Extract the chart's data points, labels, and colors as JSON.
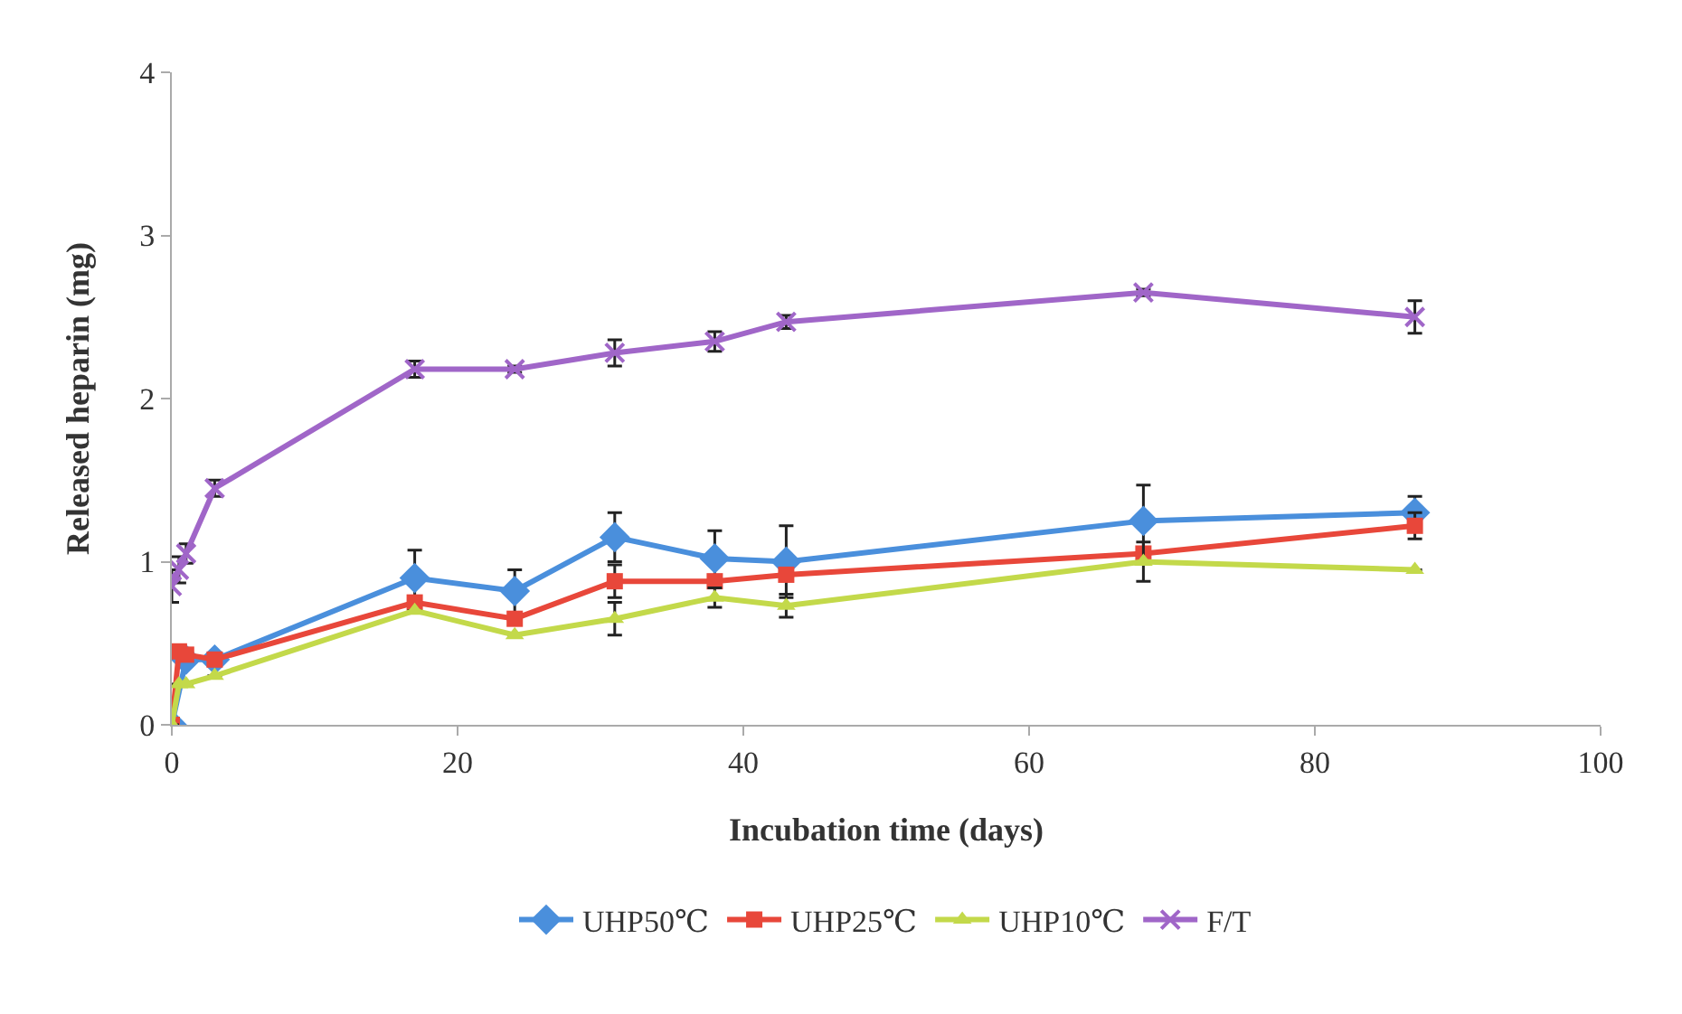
{
  "chart_data": {
    "type": "line",
    "xlabel": "Incubation time (days)",
    "ylabel": "Released heparin (mg)",
    "x": [
      0,
      0.5,
      1,
      3,
      17,
      24,
      31,
      38,
      43,
      68,
      87
    ],
    "xlim": [
      0,
      100
    ],
    "xticks": [
      0,
      20,
      40,
      60,
      80,
      100
    ],
    "ylim": [
      0,
      4
    ],
    "yticks": [
      0,
      1,
      2,
      3,
      4
    ],
    "grid": false,
    "legend": "bottom",
    "line_style": "solid",
    "series": [
      {
        "name": "UHP50℃",
        "color": "#4a8fdc",
        "marker": "diamond",
        "values": [
          0,
          null,
          0.4,
          0.4,
          0.9,
          0.82,
          1.15,
          1.02,
          1.0,
          1.25,
          1.3
        ],
        "errors": [
          null,
          null,
          null,
          null,
          0.17,
          0.13,
          0.15,
          0.17,
          0.22,
          0.22,
          0.1
        ]
      },
      {
        "name": "UHP25℃",
        "color": "#e8473a",
        "marker": "square",
        "values": [
          0,
          0.45,
          0.43,
          0.4,
          0.75,
          0.65,
          0.88,
          0.88,
          0.92,
          1.05,
          1.22
        ],
        "errors": [
          null,
          null,
          null,
          null,
          null,
          null,
          0.1,
          null,
          null,
          null,
          0.08
        ]
      },
      {
        "name": "UHP10℃",
        "color": "#c3d94a",
        "marker": "triangle",
        "values": [
          0,
          0.25,
          0.25,
          0.3,
          0.7,
          0.55,
          0.65,
          0.78,
          0.73,
          1.0,
          0.95
        ],
        "errors": [
          null,
          null,
          null,
          null,
          null,
          null,
          0.1,
          0.06,
          0.07,
          0.12,
          null
        ]
      },
      {
        "name": "F/T",
        "color": "#a066c8",
        "marker": "cross",
        "values": [
          0.85,
          0.95,
          1.05,
          1.45,
          2.18,
          2.18,
          2.28,
          2.35,
          2.47,
          2.65,
          2.5
        ],
        "errors": [
          0.1,
          0.08,
          0.06,
          0.05,
          0.05,
          0.02,
          0.08,
          0.06,
          0.04,
          0.02,
          0.1
        ]
      }
    ]
  }
}
